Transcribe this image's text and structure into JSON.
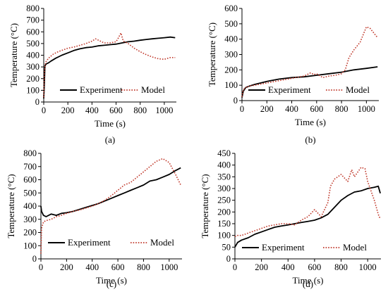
{
  "chart_data": [
    {
      "panel": "(a)",
      "type": "line",
      "xlabel": "Time (s)",
      "ylabel": "Temperature (°C)",
      "xlim": [
        0,
        1100
      ],
      "ylim": [
        0,
        800
      ],
      "xticks": [
        0,
        200,
        400,
        600,
        800,
        1000
      ],
      "yticks": [
        0,
        100,
        200,
        300,
        400,
        500,
        600,
        700,
        800
      ],
      "legend_position": "bottom-center",
      "series": [
        {
          "name": "Experiment",
          "color": "#000000",
          "style": "solid",
          "x": [
            0,
            5,
            10,
            20,
            40,
            60,
            100,
            150,
            200,
            250,
            300,
            350,
            400,
            450,
            500,
            550,
            600,
            650,
            700,
            750,
            800,
            850,
            900,
            950,
            1000,
            1050,
            1090
          ],
          "y": [
            30,
            160,
            310,
            325,
            335,
            350,
            375,
            400,
            420,
            440,
            455,
            465,
            470,
            480,
            485,
            490,
            495,
            505,
            515,
            520,
            528,
            535,
            540,
            545,
            550,
            555,
            550
          ]
        },
        {
          "name": "Model",
          "color": "#c0392b",
          "style": "dotted",
          "x": [
            0,
            5,
            15,
            40,
            80,
            120,
            160,
            200,
            250,
            300,
            350,
            400,
            430,
            460,
            500,
            550,
            600,
            620,
            640,
            660,
            700,
            750,
            800,
            850,
            900,
            950,
            1000,
            1050,
            1090
          ],
          "y": [
            40,
            250,
            340,
            375,
            410,
            430,
            445,
            460,
            470,
            485,
            500,
            520,
            540,
            525,
            505,
            505,
            515,
            550,
            590,
            520,
            500,
            460,
            430,
            405,
            385,
            370,
            365,
            380,
            380
          ]
        }
      ]
    },
    {
      "panel": "(b)",
      "type": "line",
      "xlabel": "Time (s)",
      "ylabel": "Temperature (°C)",
      "xlim": [
        0,
        1100
      ],
      "ylim": [
        0,
        600
      ],
      "xticks": [
        0,
        200,
        400,
        600,
        800,
        1000
      ],
      "yticks": [
        0,
        100,
        200,
        300,
        400,
        500,
        600
      ],
      "legend_position": "bottom-center",
      "series": [
        {
          "name": "Experiment",
          "color": "#000000",
          "style": "solid",
          "x": [
            0,
            10,
            30,
            60,
            100,
            200,
            300,
            400,
            500,
            600,
            700,
            800,
            900,
            1000,
            1090
          ],
          "y": [
            20,
            60,
            85,
            95,
            105,
            125,
            140,
            150,
            155,
            165,
            175,
            185,
            200,
            210,
            220
          ]
        },
        {
          "name": "Model",
          "color": "#c0392b",
          "style": "dotted",
          "x": [
            0,
            10,
            30,
            60,
            100,
            200,
            300,
            400,
            500,
            550,
            580,
            600,
            650,
            700,
            750,
            800,
            830,
            860,
            900,
            950,
            980,
            1000,
            1030,
            1060,
            1090
          ],
          "y": [
            25,
            70,
            85,
            95,
            100,
            115,
            130,
            145,
            160,
            180,
            170,
            175,
            150,
            160,
            165,
            175,
            200,
            280,
            330,
            380,
            440,
            480,
            470,
            440,
            410
          ]
        }
      ]
    },
    {
      "panel": "(c)",
      "type": "line",
      "xlabel": "Time (s)",
      "ylabel": "Temperature (°C)",
      "xlim": [
        0,
        1100
      ],
      "ylim": [
        0,
        800
      ],
      "xticks": [
        0,
        200,
        400,
        600,
        800,
        1000
      ],
      "yticks": [
        0,
        100,
        200,
        300,
        400,
        500,
        600,
        700,
        800
      ],
      "legend_position": "bottom-left",
      "series": [
        {
          "name": "Experiment",
          "color": "#000000",
          "style": "solid",
          "x": [
            0,
            5,
            20,
            40,
            80,
            120,
            160,
            200,
            250,
            300,
            350,
            400,
            450,
            500,
            550,
            600,
            650,
            700,
            750,
            800,
            850,
            900,
            950,
            1000,
            1050,
            1090
          ],
          "y": [
            400,
            360,
            330,
            320,
            340,
            330,
            345,
            350,
            360,
            375,
            390,
            405,
            420,
            440,
            460,
            480,
            500,
            520,
            540,
            560,
            590,
            600,
            620,
            640,
            670,
            690
          ]
        },
        {
          "name": "Model",
          "color": "#c0392b",
          "style": "dotted",
          "x": [
            0,
            5,
            20,
            40,
            80,
            120,
            160,
            200,
            250,
            300,
            350,
            400,
            450,
            500,
            550,
            600,
            650,
            700,
            750,
            800,
            850,
            900,
            950,
            1000,
            1050,
            1090
          ],
          "y": [
            40,
            230,
            280,
            290,
            300,
            320,
            330,
            345,
            360,
            370,
            385,
            400,
            420,
            445,
            480,
            520,
            560,
            580,
            620,
            660,
            700,
            740,
            760,
            730,
            640,
            560
          ]
        }
      ]
    },
    {
      "panel": "(d)",
      "type": "line",
      "xlabel": "Time (s)",
      "ylabel": "Temperature (°C)",
      "xlim": [
        0,
        1100
      ],
      "ylim": [
        0,
        450
      ],
      "xticks": [
        0,
        200,
        400,
        600,
        800,
        1000
      ],
      "yticks": [
        0,
        50,
        100,
        150,
        200,
        250,
        300,
        350,
        400,
        450
      ],
      "legend_position": "bottom-center",
      "series": [
        {
          "name": "Experiment",
          "color": "#000000",
          "style": "solid",
          "x": [
            0,
            20,
            50,
            100,
            150,
            200,
            250,
            300,
            350,
            400,
            450,
            500,
            550,
            600,
            650,
            700,
            750,
            800,
            850,
            900,
            950,
            1000,
            1050,
            1080,
            1095
          ],
          "y": [
            50,
            70,
            80,
            90,
            105,
            115,
            125,
            135,
            140,
            145,
            150,
            155,
            160,
            165,
            175,
            190,
            220,
            250,
            270,
            285,
            290,
            300,
            305,
            310,
            280
          ]
        },
        {
          "name": "Model",
          "color": "#c0392b",
          "style": "dotted",
          "x": [
            0,
            20,
            50,
            100,
            150,
            200,
            250,
            300,
            350,
            400,
            450,
            500,
            550,
            600,
            650,
            700,
            720,
            750,
            800,
            850,
            880,
            900,
            950,
            980,
            1000,
            1050,
            1080,
            1095
          ],
          "y": [
            95,
            100,
            100,
            110,
            120,
            130,
            140,
            145,
            150,
            150,
            145,
            165,
            180,
            210,
            180,
            240,
            310,
            340,
            360,
            330,
            380,
            350,
            390,
            385,
            330,
            250,
            190,
            170
          ]
        }
      ]
    }
  ]
}
